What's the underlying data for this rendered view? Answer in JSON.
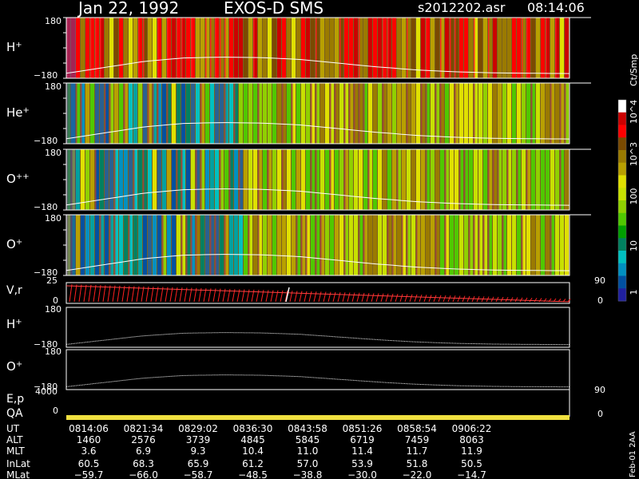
{
  "header": {
    "date": "Jan 22, 1992",
    "instrument": "EXOS-D SMS",
    "file": "s2012202.asr",
    "time": "08:14:06"
  },
  "colorbar": {
    "unit_label": "Ct/Smp",
    "tick_labels": [
      "10^4",
      "10^3",
      "100",
      "10",
      "1"
    ],
    "colors": [
      "#ffffff",
      "#cc0000",
      "#ff0000",
      "#7a4a00",
      "#9a7a00",
      "#b8a000",
      "#e0e000",
      "#c8e000",
      "#90d000",
      "#50c800",
      "#00a000",
      "#008060",
      "#00c0c0",
      "#0090c0",
      "#0050a0",
      "#2020a0"
    ]
  },
  "panels": [
    {
      "label": "H",
      "charge": "+",
      "y_top": "180",
      "y_bottom": "−180"
    },
    {
      "label": "He",
      "charge": "+",
      "y_top": "180",
      "y_bottom": "−180"
    },
    {
      "label": "O",
      "charge": "++",
      "y_top": "180",
      "y_bottom": "−180"
    },
    {
      "label": "O",
      "charge": "+",
      "y_top": "180",
      "y_bottom": "−180"
    }
  ],
  "vr_panel": {
    "label": "V,r",
    "y_top": "25",
    "y_bottom": "0",
    "right_top": "90",
    "right_bottom": "0"
  },
  "line_panels": [
    {
      "label": "H",
      "charge": "+",
      "y_top": "180",
      "y_bottom": "−180"
    },
    {
      "label": "O",
      "charge": "+",
      "y_top": "180",
      "y_bottom": "−180"
    }
  ],
  "ep_panel": {
    "label": "E,p",
    "y_top": "4000",
    "right_top": "90",
    "right_bottom": "0"
  },
  "qa_panel": {
    "label": "QA",
    "y_value": "0"
  },
  "side_label": "Feb-01 2AA",
  "ephemeris": {
    "row_labels": [
      "UT",
      "ALT",
      "MLT",
      "InLat",
      "MLat"
    ],
    "columns": [
      {
        "UT": "0814:06",
        "ALT": "1460",
        "MLT": "3.6",
        "InLat": "60.5",
        "MLat": "−59.7"
      },
      {
        "UT": "0821:34",
        "ALT": "2576",
        "MLT": "6.9",
        "InLat": "68.3",
        "MLat": "−66.0"
      },
      {
        "UT": "0829:02",
        "ALT": "3739",
        "MLT": "9.3",
        "InLat": "65.9",
        "MLat": "−58.7"
      },
      {
        "UT": "0836:30",
        "ALT": "4845",
        "MLT": "10.4",
        "InLat": "61.2",
        "MLat": "−48.5"
      },
      {
        "UT": "0843:58",
        "ALT": "5845",
        "MLT": "11.0",
        "InLat": "57.0",
        "MLat": "−38.8"
      },
      {
        "UT": "0851:26",
        "ALT": "6719",
        "MLT": "11.4",
        "InLat": "53.9",
        "MLat": "−30.0"
      },
      {
        "UT": "0858:54",
        "ALT": "7459",
        "MLT": "11.7",
        "InLat": "51.8",
        "MLat": "−22.0"
      },
      {
        "UT": "0906:22",
        "ALT": "8063",
        "MLT": "11.9",
        "InLat": "50.5",
        "MLat": "−14.7"
      }
    ]
  },
  "chart_data": {
    "type": "heatmap",
    "title": "Jan 22, 1992   EXOS-D SMS",
    "x_ticks_ut": [
      "0814:06",
      "0821:34",
      "0829:02",
      "0836:30",
      "0843:58",
      "0851:26",
      "0858:54",
      "0906:22"
    ],
    "colorscale_unit": "Ct/Smp",
    "colorscale_ticks": [
      "1",
      "10",
      "100",
      "10^3",
      "10^4"
    ],
    "colorscale_type": "log",
    "series": [
      {
        "name": "H+",
        "ylim": [
          -180,
          180
        ],
        "dominant_level": "10^3"
      },
      {
        "name": "He+",
        "ylim": [
          -180,
          180
        ],
        "dominant_level": "100"
      },
      {
        "name": "O++",
        "ylim": [
          -180,
          180
        ],
        "dominant_level": "100"
      },
      {
        "name": "O+",
        "ylim": [
          -180,
          180
        ],
        "dominant_level": "100"
      },
      {
        "name": "V,r",
        "ylim": [
          0,
          25
        ],
        "right_ylim": [
          0,
          90
        ]
      },
      {
        "name": "E,p",
        "ylim": [
          0,
          4000
        ],
        "right_ylim": [
          0,
          90
        ]
      }
    ],
    "overlay_curve_relative": [
      0.08,
      0.35,
      0.62,
      0.78,
      0.82,
      0.8,
      0.72,
      0.55,
      0.38,
      0.24,
      0.15,
      0.1,
      0.08,
      0.07
    ]
  }
}
